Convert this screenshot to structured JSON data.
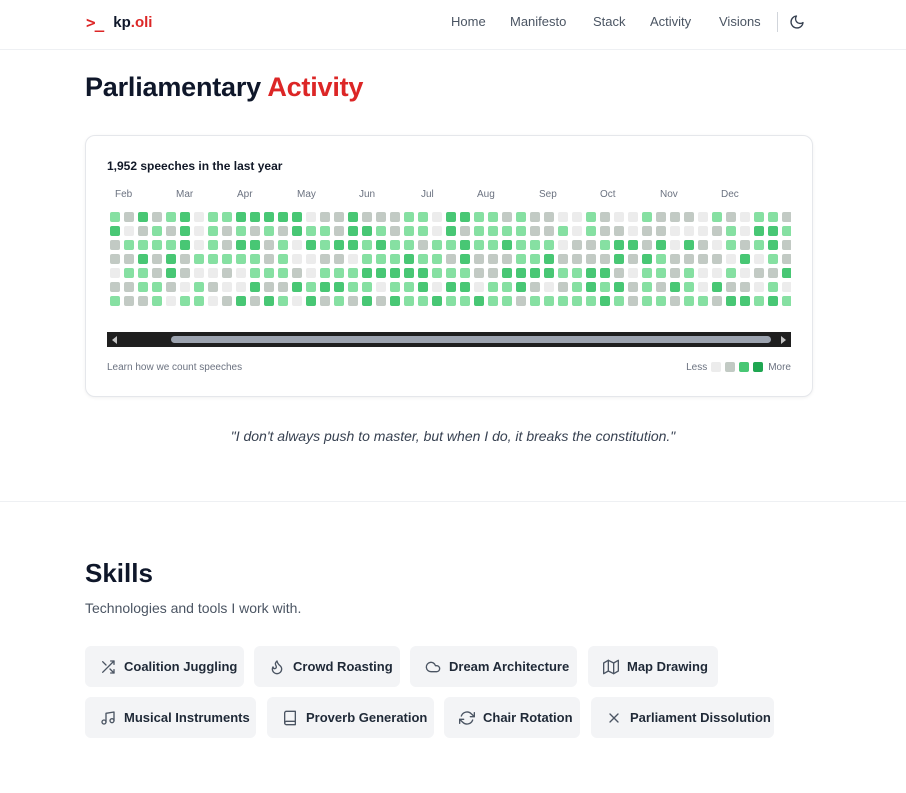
{
  "header": {
    "prompt": ">_",
    "brand_name": "kp",
    "brand_dot": ".",
    "brand_tld": "oli",
    "nav": [
      "Home",
      "Manifesto",
      "Stack",
      "Activity",
      "Visions"
    ],
    "theme_toggle_icon": "moon-icon"
  },
  "activity": {
    "title_part1": "Parliamentary",
    "title_part2": "Activity",
    "summary": "1,952 speeches in the last year",
    "months": [
      "Feb",
      "Mar",
      "Apr",
      "May",
      "Jun",
      "Jul",
      "Aug",
      "Sep",
      "Oct",
      "Nov",
      "Dec"
    ],
    "learn_link": "Learn how we count speeches",
    "legend_less": "Less",
    "legend_more": "More",
    "level_colors": [
      "#ececec",
      "#c2cac4",
      "#86e0a2",
      "#48c774",
      "#1fa651"
    ],
    "weeks": [
      [
        2,
        3,
        1,
        1,
        0,
        1,
        2
      ],
      [
        1,
        0,
        2,
        1,
        2,
        1,
        1
      ],
      [
        3,
        1,
        2,
        3,
        2,
        2,
        1
      ],
      [
        1,
        2,
        2,
        1,
        1,
        2,
        2
      ],
      [
        2,
        1,
        2,
        3,
        3,
        1,
        0
      ],
      [
        3,
        3,
        3,
        1,
        1,
        0,
        2
      ],
      [
        0,
        0,
        0,
        2,
        0,
        2,
        2
      ],
      [
        2,
        2,
        2,
        2,
        0,
        1,
        0
      ],
      [
        2,
        1,
        1,
        2,
        1,
        0,
        1
      ],
      [
        3,
        2,
        3,
        2,
        0,
        0,
        3
      ],
      [
        3,
        1,
        3,
        2,
        2,
        3,
        1
      ],
      [
        3,
        2,
        1,
        1,
        2,
        1,
        3
      ],
      [
        3,
        1,
        2,
        2,
        2,
        1,
        2
      ],
      [
        3,
        3,
        0,
        0,
        1,
        3,
        0
      ],
      [
        0,
        2,
        3,
        0,
        0,
        2,
        3
      ],
      [
        1,
        2,
        2,
        1,
        2,
        3,
        1
      ],
      [
        1,
        1,
        3,
        1,
        2,
        3,
        2
      ],
      [
        3,
        3,
        3,
        0,
        2,
        2,
        1
      ],
      [
        1,
        3,
        2,
        2,
        3,
        2,
        3
      ],
      [
        1,
        2,
        3,
        2,
        3,
        0,
        1
      ],
      [
        1,
        1,
        2,
        2,
        3,
        2,
        3
      ],
      [
        2,
        2,
        2,
        3,
        3,
        2,
        2
      ],
      [
        2,
        2,
        1,
        2,
        3,
        3,
        2
      ],
      [
        0,
        0,
        2,
        2,
        2,
        0,
        3
      ],
      [
        3,
        3,
        2,
        1,
        2,
        3,
        2
      ],
      [
        3,
        1,
        3,
        3,
        2,
        3,
        2
      ],
      [
        2,
        2,
        2,
        1,
        1,
        0,
        3
      ],
      [
        2,
        2,
        2,
        1,
        1,
        2,
        2
      ],
      [
        1,
        2,
        3,
        1,
        3,
        2,
        2
      ],
      [
        2,
        2,
        2,
        2,
        3,
        3,
        1
      ],
      [
        1,
        1,
        2,
        2,
        3,
        1,
        2
      ],
      [
        1,
        1,
        2,
        3,
        3,
        0,
        2
      ],
      [
        0,
        2,
        0,
        1,
        2,
        1,
        2
      ],
      [
        0,
        0,
        1,
        1,
        2,
        2,
        2
      ],
      [
        2,
        2,
        1,
        1,
        3,
        3,
        2
      ],
      [
        1,
        1,
        2,
        1,
        3,
        2,
        3
      ],
      [
        0,
        1,
        3,
        3,
        1,
        3,
        2
      ],
      [
        0,
        0,
        3,
        1,
        0,
        1,
        1
      ],
      [
        2,
        1,
        1,
        3,
        2,
        2,
        2
      ],
      [
        1,
        1,
        3,
        2,
        2,
        1,
        2
      ],
      [
        1,
        0,
        0,
        1,
        1,
        3,
        1
      ],
      [
        1,
        0,
        3,
        1,
        2,
        2,
        2
      ],
      [
        0,
        0,
        1,
        1,
        0,
        0,
        2
      ],
      [
        2,
        1,
        0,
        1,
        0,
        3,
        1
      ],
      [
        1,
        2,
        2,
        0,
        2,
        1,
        3
      ],
      [
        0,
        0,
        1,
        3,
        0,
        1,
        3
      ],
      [
        2,
        3,
        2,
        0,
        1,
        0,
        2
      ],
      [
        2,
        3,
        3,
        2,
        1,
        2,
        3
      ],
      [
        1,
        2,
        1,
        1,
        3,
        0,
        2
      ],
      [
        2,
        1,
        1,
        2,
        3,
        1,
        2
      ],
      [
        0,
        1,
        3,
        2,
        0,
        1,
        2
      ],
      [
        0,
        3,
        1,
        1,
        1,
        0,
        2
      ],
      [
        2,
        3,
        2,
        3,
        2,
        1,
        1
      ]
    ]
  },
  "quote": "\"I don't always push to master, but when I do, it breaks the constitution.\"",
  "skills": {
    "title": "Skills",
    "subtitle": "Technologies and tools I work with.",
    "items": [
      {
        "label": "Coalition Juggling",
        "icon": "shuffle-icon"
      },
      {
        "label": "Crowd Roasting",
        "icon": "flame-icon"
      },
      {
        "label": "Dream Architecture",
        "icon": "cloud-icon"
      },
      {
        "label": "Map Drawing",
        "icon": "map-icon"
      },
      {
        "label": "Musical Instruments",
        "icon": "music-icon"
      },
      {
        "label": "Proverb Generation",
        "icon": "book-icon"
      },
      {
        "label": "Chair Rotation",
        "icon": "refresh-icon"
      },
      {
        "label": "Parliament Dissolution",
        "icon": "x-icon"
      }
    ]
  }
}
